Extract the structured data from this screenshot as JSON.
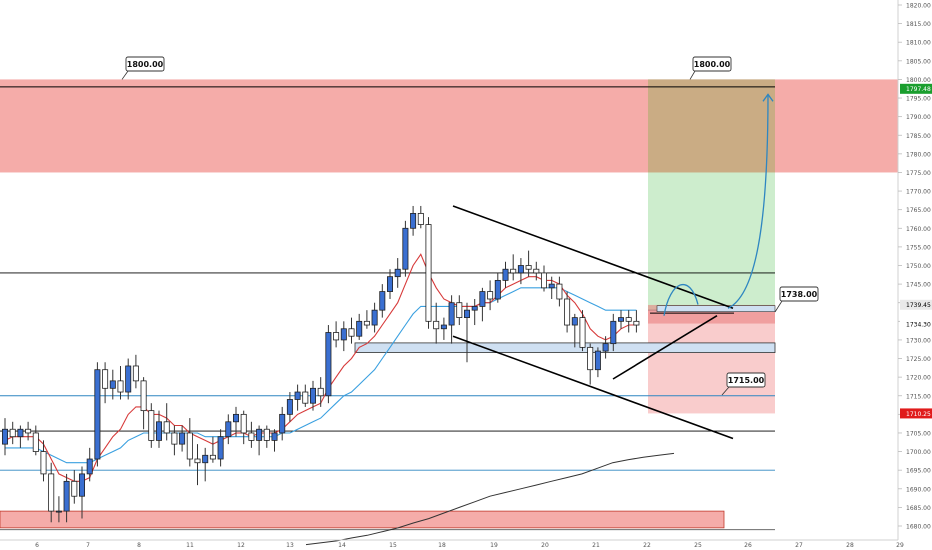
{
  "chart_data": {
    "type": "candlestick",
    "title": "",
    "xlabel": "",
    "ylabel": "",
    "ylim": [
      1677.5,
      1822.5
    ],
    "x_ticks": [
      "6",
      "7",
      "8",
      "11",
      "12",
      "13",
      "14",
      "15",
      "18",
      "19",
      "20",
      "21",
      "22",
      "25",
      "26",
      "27",
      "28",
      "29"
    ],
    "y_ticks": [
      1820,
      1815,
      1810,
      1805,
      1800,
      1795,
      1790,
      1785,
      1780,
      1775,
      1770,
      1765,
      1760,
      1755,
      1750,
      1745,
      1740,
      1735,
      1730,
      1725,
      1720,
      1715,
      1710,
      1705,
      1700,
      1695,
      1690,
      1685,
      1680
    ],
    "y_tick_labels": [
      "1820.00",
      "1815.00",
      "1810.00",
      "1805.00",
      "1800.00",
      "1795.00",
      "1790.00",
      "1785.00",
      "1780.00",
      "1775.00",
      "1770.00",
      "1765.00",
      "1760.00",
      "1755.00",
      "1750.00",
      "1745.00",
      "1740.00",
      "1735.00",
      "1730.00",
      "1725.00",
      "1720.00",
      "1715.00",
      "1710.00",
      "1705.00",
      "1700.00",
      "1695.00",
      "1690.00",
      "1685.00",
      "1680.00"
    ],
    "grid": false,
    "candles": [
      {
        "o": 1702,
        "h": 1709,
        "l": 1699,
        "c": 1706
      },
      {
        "o": 1706,
        "h": 1708,
        "l": 1702,
        "c": 1704
      },
      {
        "o": 1704,
        "h": 1707,
        "l": 1701,
        "c": 1706
      },
      {
        "o": 1706,
        "h": 1708,
        "l": 1703,
        "c": 1705
      },
      {
        "o": 1705,
        "h": 1707,
        "l": 1699,
        "c": 1700
      },
      {
        "o": 1700,
        "h": 1703,
        "l": 1692,
        "c": 1694
      },
      {
        "o": 1694,
        "h": 1697,
        "l": 1681,
        "c": 1684
      },
      {
        "o": 1684,
        "h": 1688,
        "l": 1681,
        "c": 1684
      },
      {
        "o": 1684,
        "h": 1694,
        "l": 1681,
        "c": 1692
      },
      {
        "o": 1692,
        "h": 1695,
        "l": 1686,
        "c": 1688
      },
      {
        "o": 1688,
        "h": 1696,
        "l": 1682,
        "c": 1694
      },
      {
        "o": 1694,
        "h": 1701,
        "l": 1692,
        "c": 1698
      },
      {
        "o": 1698,
        "h": 1724,
        "l": 1696,
        "c": 1722
      },
      {
        "o": 1722,
        "h": 1724,
        "l": 1713,
        "c": 1717
      },
      {
        "o": 1717,
        "h": 1722,
        "l": 1714,
        "c": 1719
      },
      {
        "o": 1719,
        "h": 1723,
        "l": 1714,
        "c": 1716
      },
      {
        "o": 1716,
        "h": 1725,
        "l": 1714,
        "c": 1723
      },
      {
        "o": 1723,
        "h": 1726,
        "l": 1717,
        "c": 1719
      },
      {
        "o": 1719,
        "h": 1720,
        "l": 1706,
        "c": 1711
      },
      {
        "o": 1711,
        "h": 1713,
        "l": 1701,
        "c": 1703
      },
      {
        "o": 1703,
        "h": 1711,
        "l": 1701,
        "c": 1708
      },
      {
        "o": 1708,
        "h": 1713,
        "l": 1703,
        "c": 1705
      },
      {
        "o": 1705,
        "h": 1707,
        "l": 1699,
        "c": 1702
      },
      {
        "o": 1702,
        "h": 1707,
        "l": 1700,
        "c": 1705
      },
      {
        "o": 1705,
        "h": 1709,
        "l": 1696,
        "c": 1698
      },
      {
        "o": 1698,
        "h": 1702,
        "l": 1691,
        "c": 1697
      },
      {
        "o": 1697,
        "h": 1701,
        "l": 1692,
        "c": 1699
      },
      {
        "o": 1699,
        "h": 1704,
        "l": 1697,
        "c": 1698
      },
      {
        "o": 1698,
        "h": 1706,
        "l": 1696,
        "c": 1704
      },
      {
        "o": 1704,
        "h": 1710,
        "l": 1702,
        "c": 1708
      },
      {
        "o": 1708,
        "h": 1712,
        "l": 1704,
        "c": 1710
      },
      {
        "o": 1710,
        "h": 1711,
        "l": 1702,
        "c": 1705
      },
      {
        "o": 1705,
        "h": 1708,
        "l": 1701,
        "c": 1703
      },
      {
        "o": 1703,
        "h": 1707,
        "l": 1699,
        "c": 1706
      },
      {
        "o": 1706,
        "h": 1707,
        "l": 1701,
        "c": 1703
      },
      {
        "o": 1703,
        "h": 1706,
        "l": 1700,
        "c": 1705
      },
      {
        "o": 1705,
        "h": 1712,
        "l": 1703,
        "c": 1710
      },
      {
        "o": 1710,
        "h": 1716,
        "l": 1708,
        "c": 1714
      },
      {
        "o": 1714,
        "h": 1718,
        "l": 1711,
        "c": 1716
      },
      {
        "o": 1716,
        "h": 1718,
        "l": 1712,
        "c": 1713
      },
      {
        "o": 1713,
        "h": 1719,
        "l": 1711,
        "c": 1717
      },
      {
        "o": 1717,
        "h": 1720,
        "l": 1712,
        "c": 1715
      },
      {
        "o": 1715,
        "h": 1734,
        "l": 1713,
        "c": 1732
      },
      {
        "o": 1732,
        "h": 1735,
        "l": 1728,
        "c": 1730
      },
      {
        "o": 1730,
        "h": 1735,
        "l": 1727,
        "c": 1733
      },
      {
        "o": 1733,
        "h": 1736,
        "l": 1729,
        "c": 1731
      },
      {
        "o": 1731,
        "h": 1737,
        "l": 1730,
        "c": 1735
      },
      {
        "o": 1735,
        "h": 1738,
        "l": 1733,
        "c": 1734
      },
      {
        "o": 1734,
        "h": 1740,
        "l": 1732,
        "c": 1738
      },
      {
        "o": 1738,
        "h": 1745,
        "l": 1736,
        "c": 1743
      },
      {
        "o": 1743,
        "h": 1749,
        "l": 1741,
        "c": 1747
      },
      {
        "o": 1747,
        "h": 1752,
        "l": 1744,
        "c": 1749
      },
      {
        "o": 1749,
        "h": 1762,
        "l": 1747,
        "c": 1760
      },
      {
        "o": 1760,
        "h": 1766,
        "l": 1758,
        "c": 1764
      },
      {
        "o": 1764,
        "h": 1766,
        "l": 1760,
        "c": 1761
      },
      {
        "o": 1761,
        "h": 1763,
        "l": 1733,
        "c": 1735
      },
      {
        "o": 1735,
        "h": 1740,
        "l": 1729,
        "c": 1733
      },
      {
        "o": 1733,
        "h": 1736,
        "l": 1730,
        "c": 1734
      },
      {
        "o": 1734,
        "h": 1742,
        "l": 1729,
        "c": 1740
      },
      {
        "o": 1740,
        "h": 1742,
        "l": 1734,
        "c": 1736
      },
      {
        "o": 1736,
        "h": 1740,
        "l": 1724,
        "c": 1738
      },
      {
        "o": 1738,
        "h": 1741,
        "l": 1734,
        "c": 1739
      },
      {
        "o": 1739,
        "h": 1744,
        "l": 1735,
        "c": 1743
      },
      {
        "o": 1743,
        "h": 1746,
        "l": 1738,
        "c": 1741
      },
      {
        "o": 1741,
        "h": 1748,
        "l": 1740,
        "c": 1746
      },
      {
        "o": 1746,
        "h": 1751,
        "l": 1744,
        "c": 1749
      },
      {
        "o": 1749,
        "h": 1753,
        "l": 1746,
        "c": 1748
      },
      {
        "o": 1748,
        "h": 1752,
        "l": 1745,
        "c": 1750
      },
      {
        "o": 1750,
        "h": 1754,
        "l": 1747,
        "c": 1749
      },
      {
        "o": 1749,
        "h": 1751,
        "l": 1746,
        "c": 1748
      },
      {
        "o": 1748,
        "h": 1750,
        "l": 1743,
        "c": 1744
      },
      {
        "o": 1744,
        "h": 1747,
        "l": 1741,
        "c": 1745
      },
      {
        "o": 1745,
        "h": 1747,
        "l": 1739,
        "c": 1741
      },
      {
        "o": 1741,
        "h": 1743,
        "l": 1732,
        "c": 1734
      },
      {
        "o": 1734,
        "h": 1737,
        "l": 1728,
        "c": 1736
      },
      {
        "o": 1736,
        "h": 1738,
        "l": 1727,
        "c": 1728
      },
      {
        "o": 1728,
        "h": 1729,
        "l": 1718,
        "c": 1722
      },
      {
        "o": 1722,
        "h": 1728,
        "l": 1720,
        "c": 1727
      },
      {
        "o": 1727,
        "h": 1731,
        "l": 1725,
        "c": 1729
      },
      {
        "o": 1729,
        "h": 1737,
        "l": 1727,
        "c": 1735
      },
      {
        "o": 1735,
        "h": 1738,
        "l": 1733,
        "c": 1736
      },
      {
        "o": 1736,
        "h": 1738,
        "l": 1732,
        "c": 1735
      },
      {
        "o": 1735,
        "h": 1738,
        "l": 1732,
        "c": 1734
      }
    ],
    "ema_fast": [
      1703,
      1704,
      1704,
      1704,
      1704,
      1702,
      1698,
      1694,
      1693,
      1692,
      1692,
      1693,
      1698,
      1701,
      1704,
      1706,
      1710,
      1712,
      1712,
      1710,
      1710,
      1709,
      1707,
      1707,
      1705,
      1704,
      1703,
      1702,
      1703,
      1704,
      1705,
      1705,
      1704,
      1705,
      1705,
      1705,
      1706,
      1708,
      1710,
      1711,
      1712,
      1713,
      1717,
      1720,
      1723,
      1725,
      1728,
      1729,
      1731,
      1734,
      1737,
      1740,
      1745,
      1750,
      1753,
      1748,
      1744,
      1741,
      1740,
      1739,
      1739,
      1739,
      1740,
      1740,
      1742,
      1744,
      1745,
      1746,
      1747,
      1747,
      1746,
      1746,
      1745,
      1742,
      1740,
      1737,
      1733,
      1731,
      1730,
      1731,
      1733,
      1734,
      1734
    ],
    "ema_slow": [
      1701,
      1701,
      1701,
      1701,
      1701,
      1700,
      1699,
      1698,
      1697,
      1697,
      1697,
      1697,
      1698,
      1699,
      1700,
      1701,
      1703,
      1704,
      1705,
      1705,
      1705,
      1705,
      1705,
      1705,
      1705,
      1705,
      1704,
      1704,
      1704,
      1704,
      1704,
      1704,
      1704,
      1704,
      1704,
      1704,
      1705,
      1705,
      1706,
      1707,
      1708,
      1709,
      1711,
      1713,
      1715,
      1716,
      1718,
      1720,
      1722,
      1725,
      1728,
      1731,
      1734,
      1737,
      1739,
      1739,
      1739,
      1739,
      1739,
      1739,
      1739,
      1739,
      1740,
      1740,
      1741,
      1742,
      1743,
      1744,
      1744,
      1744,
      1744,
      1744,
      1744,
      1743,
      1742,
      1741,
      1740,
      1739,
      1738,
      1738,
      1738,
      1738,
      1738
    ],
    "sma_long": [
      1675,
      1675.5,
      1676,
      1676.8,
      1677.5,
      1678.5,
      1679.5,
      1680.8,
      1682,
      1683.5,
      1685,
      1686.5,
      1688,
      1689,
      1690,
      1691,
      1692,
      1693,
      1694,
      1695.5,
      1697,
      1697.8,
      1698.5,
      1699,
      1699.5
    ],
    "horizontal_levels": [
      {
        "name": "1800 resistance",
        "value": 1798,
        "color": "#000000"
      },
      {
        "name": "1748 level",
        "value": 1748,
        "color": "#000000"
      },
      {
        "name": "1715 level",
        "value": 1715,
        "color": "#2e86c1"
      },
      {
        "name": "1705 level",
        "value": 1705.5,
        "color": "#000000"
      },
      {
        "name": "1695 level",
        "value": 1695,
        "color": "#2e86c1"
      },
      {
        "name": "bottom level",
        "value": 1679,
        "color": "#555555"
      }
    ],
    "zones": [
      {
        "name": "resistance zone",
        "y1": 1800,
        "y2": 1775,
        "color": "#f4a3a0"
      },
      {
        "name": "support zone",
        "y1": 1684,
        "y2": 1679.5,
        "color": "#f4a3a0"
      }
    ],
    "callouts": [
      {
        "label": "1800.00",
        "value": 1800
      },
      {
        "label": "1800.00",
        "value": 1800
      },
      {
        "label": "1738.00",
        "value": 1738
      },
      {
        "label": "1715.00",
        "value": 1715
      }
    ],
    "price_badges": [
      {
        "label": "1797.48",
        "value": 1797.48,
        "bg": "#1a9e2e",
        "fg": "#ffffff"
      },
      {
        "label": "1739.45",
        "value": 1739.45,
        "bg": "#e9e9e9",
        "fg": "#000000"
      },
      {
        "label": "1734.30",
        "value": 1734.3,
        "bg": "#ffffff",
        "fg": "#000000"
      },
      {
        "label": "1710.25",
        "value": 1710.25,
        "bg": "#e01b1b",
        "fg": "#ffffff"
      }
    ],
    "trade": {
      "entry": 1738,
      "target": 1800,
      "stop": 1710.25
    },
    "colors": {
      "bull_body": "#3a6fd1",
      "bear_body": "#ffffff",
      "wick": "#333333",
      "ema_fast": "#d73a3a",
      "ema_slow": "#3aa0e0",
      "sma_long": "#333333",
      "profit_zone": "#c8ebc8",
      "loss_zone": "#f8c7c7",
      "overlap_zone": "#c9a981",
      "base_box": "#cfe0f2",
      "pattern_line": "#000000",
      "projection": "#2e86c1"
    }
  }
}
